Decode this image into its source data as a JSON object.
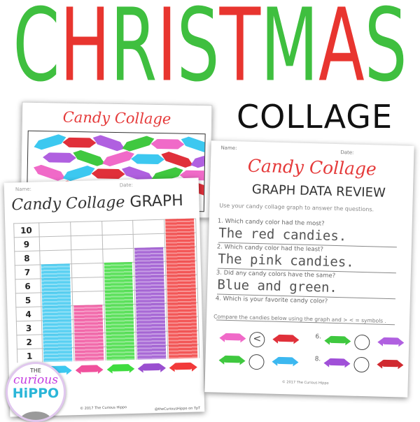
{
  "title": {
    "letters": [
      "C",
      "H",
      "R",
      "I",
      "S",
      "T",
      "M",
      "A",
      "S"
    ],
    "colors": [
      "#3fbf3f",
      "#e8352f",
      "#3fbf3f",
      "#e8352f",
      "#3fbf3f",
      "#e8352f",
      "#3fbf3f",
      "#e8352f",
      "#3fbf3f"
    ]
  },
  "subtitle": "COLLAGE",
  "back_sheet": {
    "title": "Candy Collage"
  },
  "graph_sheet": {
    "name_label": "Name:",
    "date_label": "Date:",
    "title_script": "Candy Collage",
    "title_caps": "GRAPH",
    "rows": [
      "10",
      "9",
      "8",
      "7",
      "6",
      "5",
      "4",
      "3",
      "2",
      "1"
    ],
    "bars": [
      {
        "color": "#3cc8f0",
        "value": 7
      },
      {
        "color": "#f0509c",
        "value": 4
      },
      {
        "color": "#3fdc3f",
        "value": 7
      },
      {
        "color": "#9a4fd0",
        "value": 8
      },
      {
        "color": "#f23a3a",
        "value": 10
      }
    ],
    "copyright": "© 2017 The Curious Hippo",
    "credit": "@theCuriousHippo on TpT"
  },
  "review_sheet": {
    "name_label": "Name:",
    "date_label": "Date:",
    "title_script": "Candy Collage",
    "title_caps": "GRAPH DATA REVIEW",
    "instructions": "Use your candy collage graph to answer the questions.",
    "questions": [
      {
        "q": "1.  Which candy color had the most?",
        "a": "The red candies."
      },
      {
        "q": "2.  Which candy color had the least?",
        "a": "The pink candies."
      },
      {
        "q": "3.  Did any candy colors have the same?",
        "a": "Blue and green."
      },
      {
        "q": "4.  Which is your favorite candy color?",
        "a": ""
      }
    ],
    "compare_text": "Compare the candies below using the graph and  > < =  symbols .",
    "comparisons": [
      {
        "num": "",
        "left": "#f06ac8",
        "symbol": "<",
        "right": "#e0303a"
      },
      {
        "num": "6.",
        "left": "#3fc83f",
        "symbol": "",
        "right": "#b060e0"
      },
      {
        "num": "",
        "left": "#3fc83f",
        "symbol": "",
        "right": "#3cb8f0"
      },
      {
        "num": "8.",
        "left": "#a050d8",
        "symbol": "",
        "right": "#d02a30"
      }
    ],
    "copyright": "© 2017 The Curious Hippo"
  },
  "logo": {
    "line1": "THE",
    "line2": "curious",
    "line3": "HiPPO"
  }
}
